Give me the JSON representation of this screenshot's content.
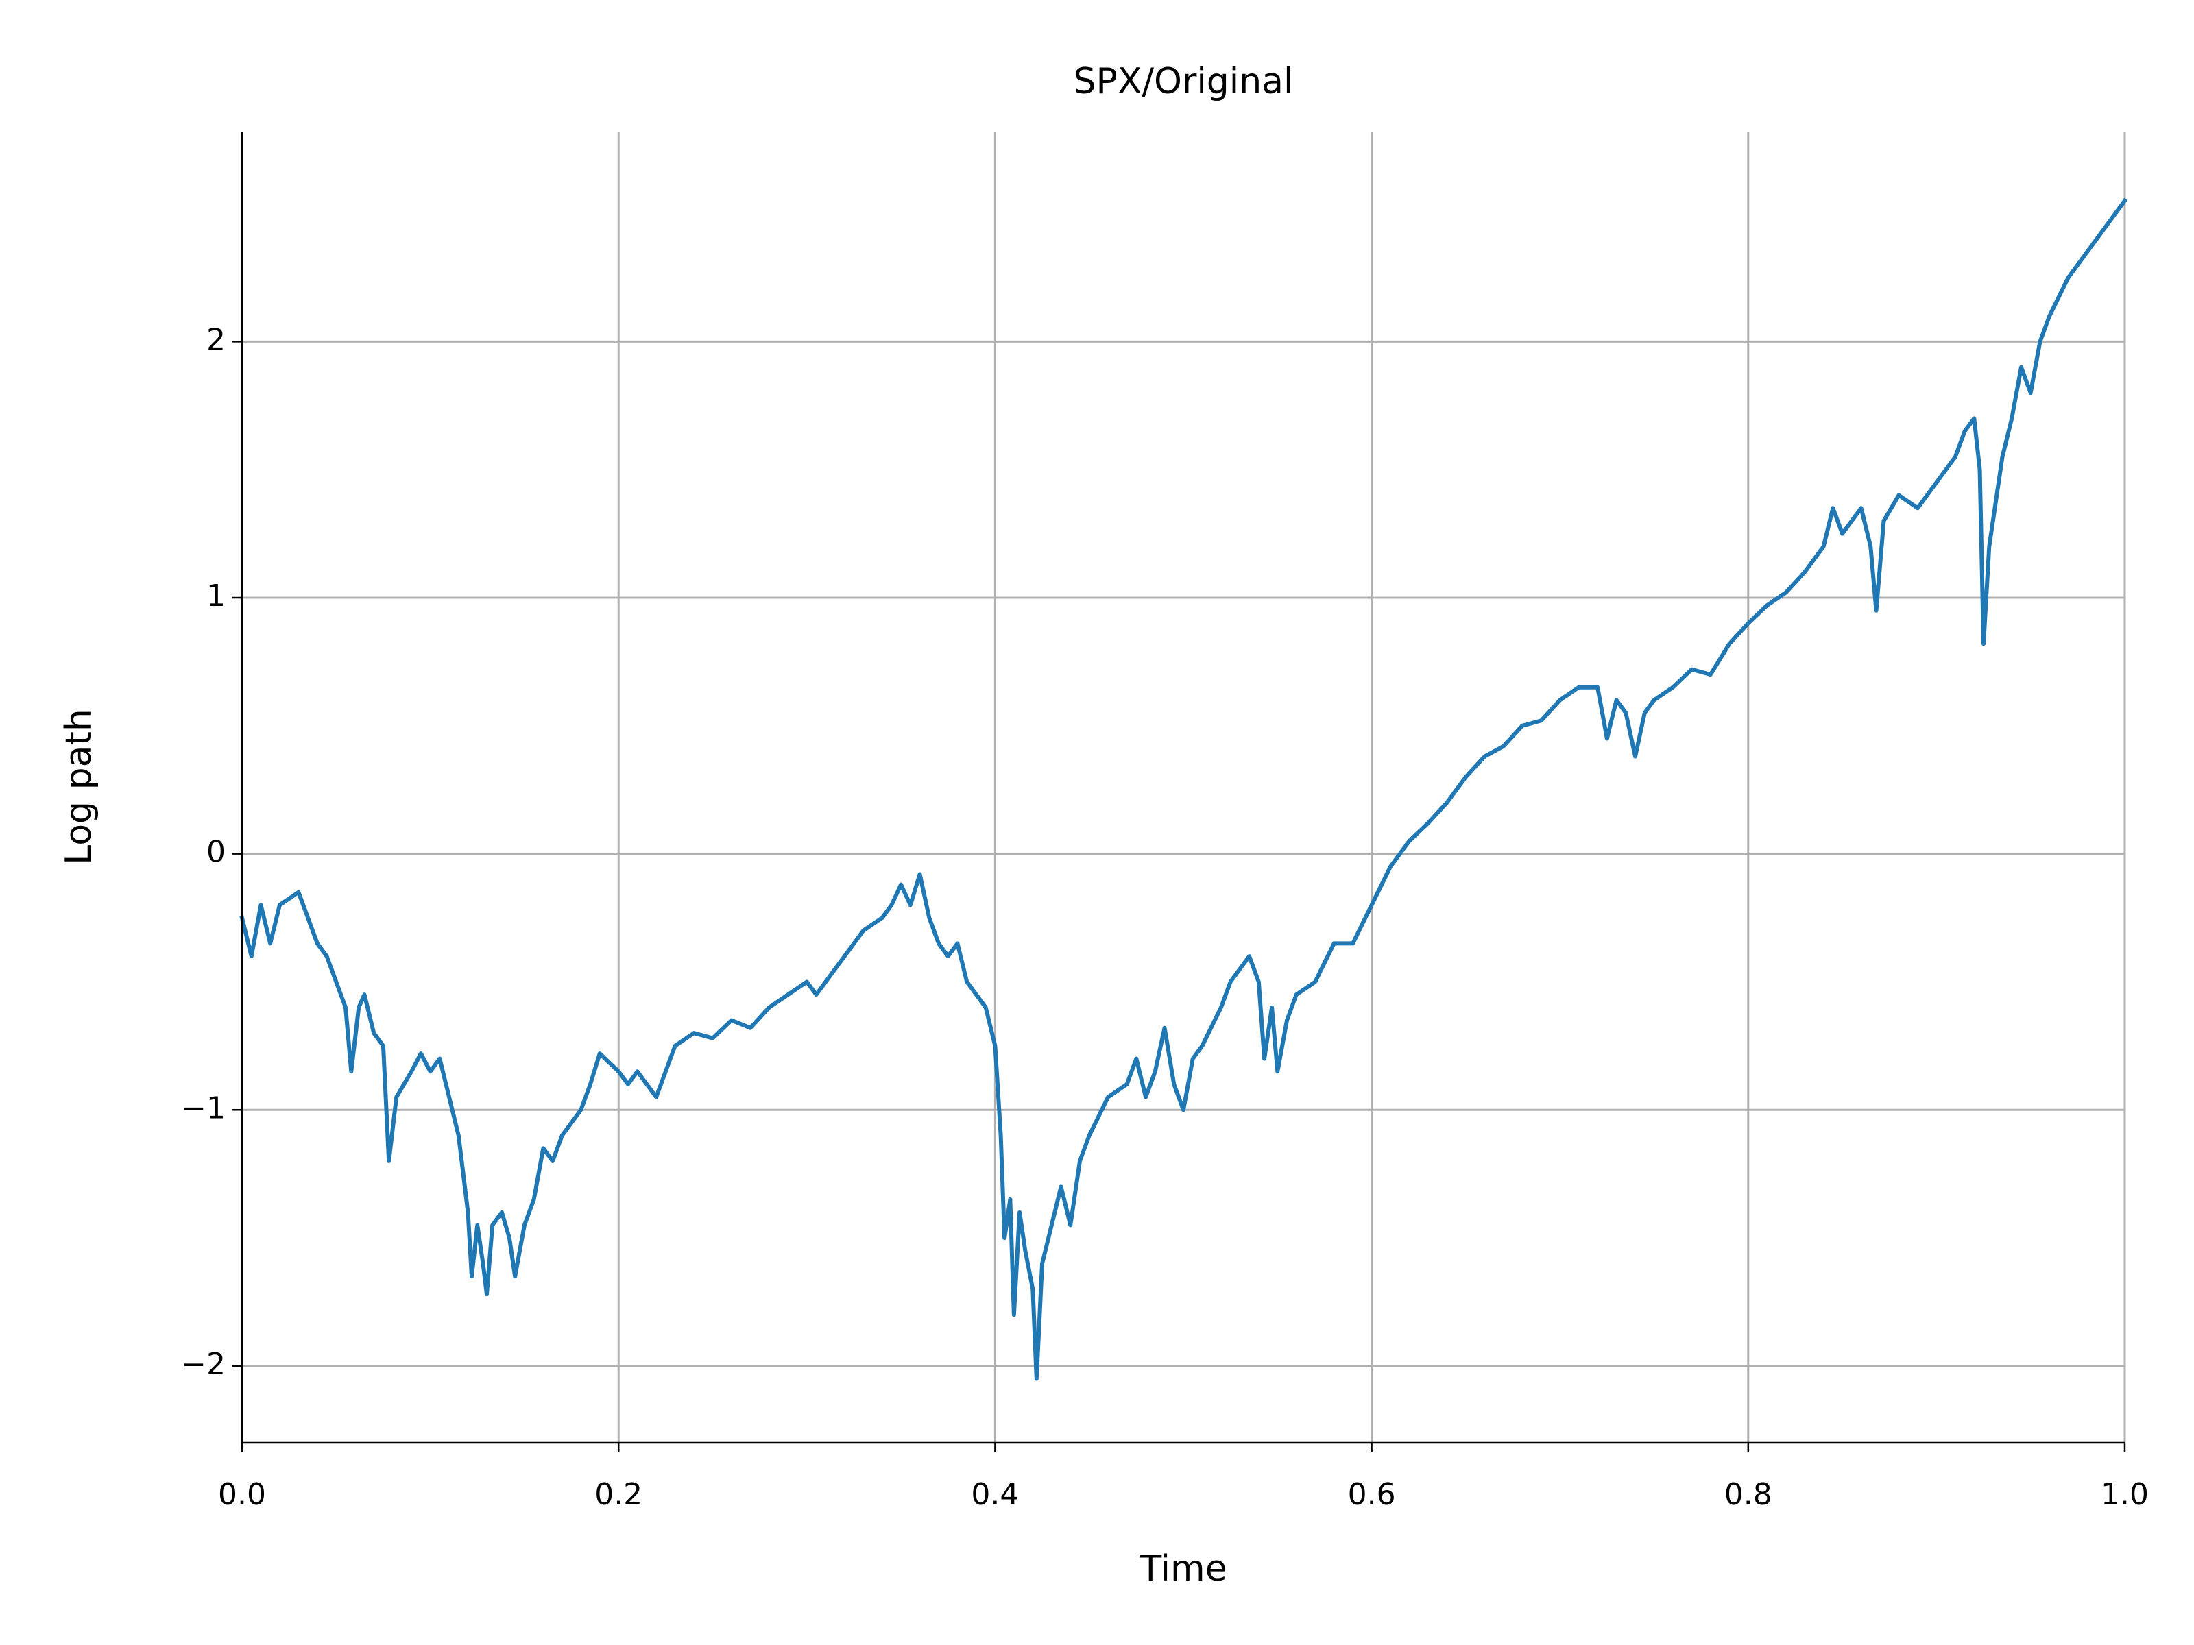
{
  "chart_data": {
    "type": "line",
    "title": "SPX/Original",
    "xlabel": "Time",
    "ylabel": "Log path",
    "color": "#1f77b4",
    "grid": true,
    "xlim": [
      0,
      1
    ],
    "ylim": [
      -2.3,
      2.82
    ],
    "xticks": [
      {
        "value": 0,
        "label": "0.0"
      },
      0.2,
      0.4,
      0.6,
      0.8,
      {
        "value": 1,
        "label": "1.0"
      }
    ],
    "yticks": [
      {
        "value": -2,
        "label": "−2"
      },
      {
        "value": -1,
        "label": "−1"
      },
      0,
      1,
      2
    ],
    "x": [
      0.0,
      0.005,
      0.01,
      0.015,
      0.02,
      0.03,
      0.035,
      0.04,
      0.045,
      0.05,
      0.055,
      0.058,
      0.062,
      0.065,
      0.07,
      0.075,
      0.078,
      0.082,
      0.09,
      0.095,
      0.1,
      0.105,
      0.11,
      0.115,
      0.12,
      0.122,
      0.125,
      0.128,
      0.13,
      0.133,
      0.138,
      0.142,
      0.145,
      0.15,
      0.155,
      0.16,
      0.165,
      0.17,
      0.18,
      0.185,
      0.19,
      0.2,
      0.205,
      0.21,
      0.22,
      0.225,
      0.23,
      0.24,
      0.25,
      0.26,
      0.27,
      0.28,
      0.29,
      0.3,
      0.305,
      0.31,
      0.32,
      0.33,
      0.34,
      0.345,
      0.35,
      0.355,
      0.36,
      0.365,
      0.37,
      0.375,
      0.38,
      0.385,
      0.39,
      0.395,
      0.4,
      0.403,
      0.405,
      0.408,
      0.41,
      0.413,
      0.416,
      0.42,
      0.422,
      0.425,
      0.43,
      0.435,
      0.44,
      0.445,
      0.45,
      0.46,
      0.47,
      0.475,
      0.48,
      0.485,
      0.49,
      0.495,
      0.5,
      0.505,
      0.51,
      0.52,
      0.525,
      0.53,
      0.535,
      0.54,
      0.543,
      0.547,
      0.55,
      0.555,
      0.56,
      0.57,
      0.58,
      0.59,
      0.6,
      0.61,
      0.62,
      0.63,
      0.64,
      0.65,
      0.66,
      0.67,
      0.68,
      0.69,
      0.7,
      0.71,
      0.72,
      0.725,
      0.73,
      0.735,
      0.74,
      0.745,
      0.75,
      0.76,
      0.77,
      0.78,
      0.79,
      0.8,
      0.81,
      0.82,
      0.83,
      0.84,
      0.845,
      0.85,
      0.86,
      0.865,
      0.868,
      0.872,
      0.88,
      0.89,
      0.9,
      0.91,
      0.915,
      0.92,
      0.923,
      0.925,
      0.928,
      0.935,
      0.94,
      0.945,
      0.95,
      0.955,
      0.96,
      0.97,
      0.98,
      0.99,
      1.0
    ],
    "values": [
      -0.25,
      -0.4,
      -0.2,
      -0.35,
      -0.2,
      -0.15,
      -0.25,
      -0.35,
      -0.4,
      -0.5,
      -0.6,
      -0.85,
      -0.6,
      -0.55,
      -0.7,
      -0.75,
      -1.2,
      -0.95,
      -0.85,
      -0.78,
      -0.85,
      -0.8,
      -0.95,
      -1.1,
      -1.4,
      -1.65,
      -1.45,
      -1.6,
      -1.72,
      -1.45,
      -1.4,
      -1.5,
      -1.65,
      -1.45,
      -1.35,
      -1.15,
      -1.2,
      -1.1,
      -1.0,
      -0.9,
      -0.78,
      -0.85,
      -0.9,
      -0.85,
      -0.95,
      -0.85,
      -0.75,
      -0.7,
      -0.72,
      -0.65,
      -0.68,
      -0.6,
      -0.55,
      -0.5,
      -0.55,
      -0.5,
      -0.4,
      -0.3,
      -0.25,
      -0.2,
      -0.12,
      -0.2,
      -0.08,
      -0.25,
      -0.35,
      -0.4,
      -0.35,
      -0.5,
      -0.55,
      -0.6,
      -0.75,
      -1.1,
      -1.5,
      -1.35,
      -1.8,
      -1.4,
      -1.55,
      -1.7,
      -2.05,
      -1.6,
      -1.45,
      -1.3,
      -1.45,
      -1.2,
      -1.1,
      -0.95,
      -0.9,
      -0.8,
      -0.95,
      -0.85,
      -0.68,
      -0.9,
      -1.0,
      -0.8,
      -0.75,
      -0.6,
      -0.5,
      -0.45,
      -0.4,
      -0.5,
      -0.8,
      -0.6,
      -0.85,
      -0.65,
      -0.55,
      -0.5,
      -0.35,
      -0.35,
      -0.2,
      -0.05,
      0.05,
      0.12,
      0.2,
      0.3,
      0.38,
      0.42,
      0.5,
      0.52,
      0.6,
      0.65,
      0.65,
      0.45,
      0.6,
      0.55,
      0.38,
      0.55,
      0.6,
      0.65,
      0.72,
      0.7,
      0.82,
      0.9,
      0.97,
      1.02,
      1.1,
      1.2,
      1.35,
      1.25,
      1.35,
      1.2,
      0.95,
      1.3,
      1.4,
      1.35,
      1.45,
      1.55,
      1.65,
      1.7,
      1.5,
      0.82,
      1.2,
      1.55,
      1.7,
      1.9,
      1.8,
      2.0,
      2.1,
      2.25,
      2.35,
      2.45,
      2.55
    ]
  }
}
